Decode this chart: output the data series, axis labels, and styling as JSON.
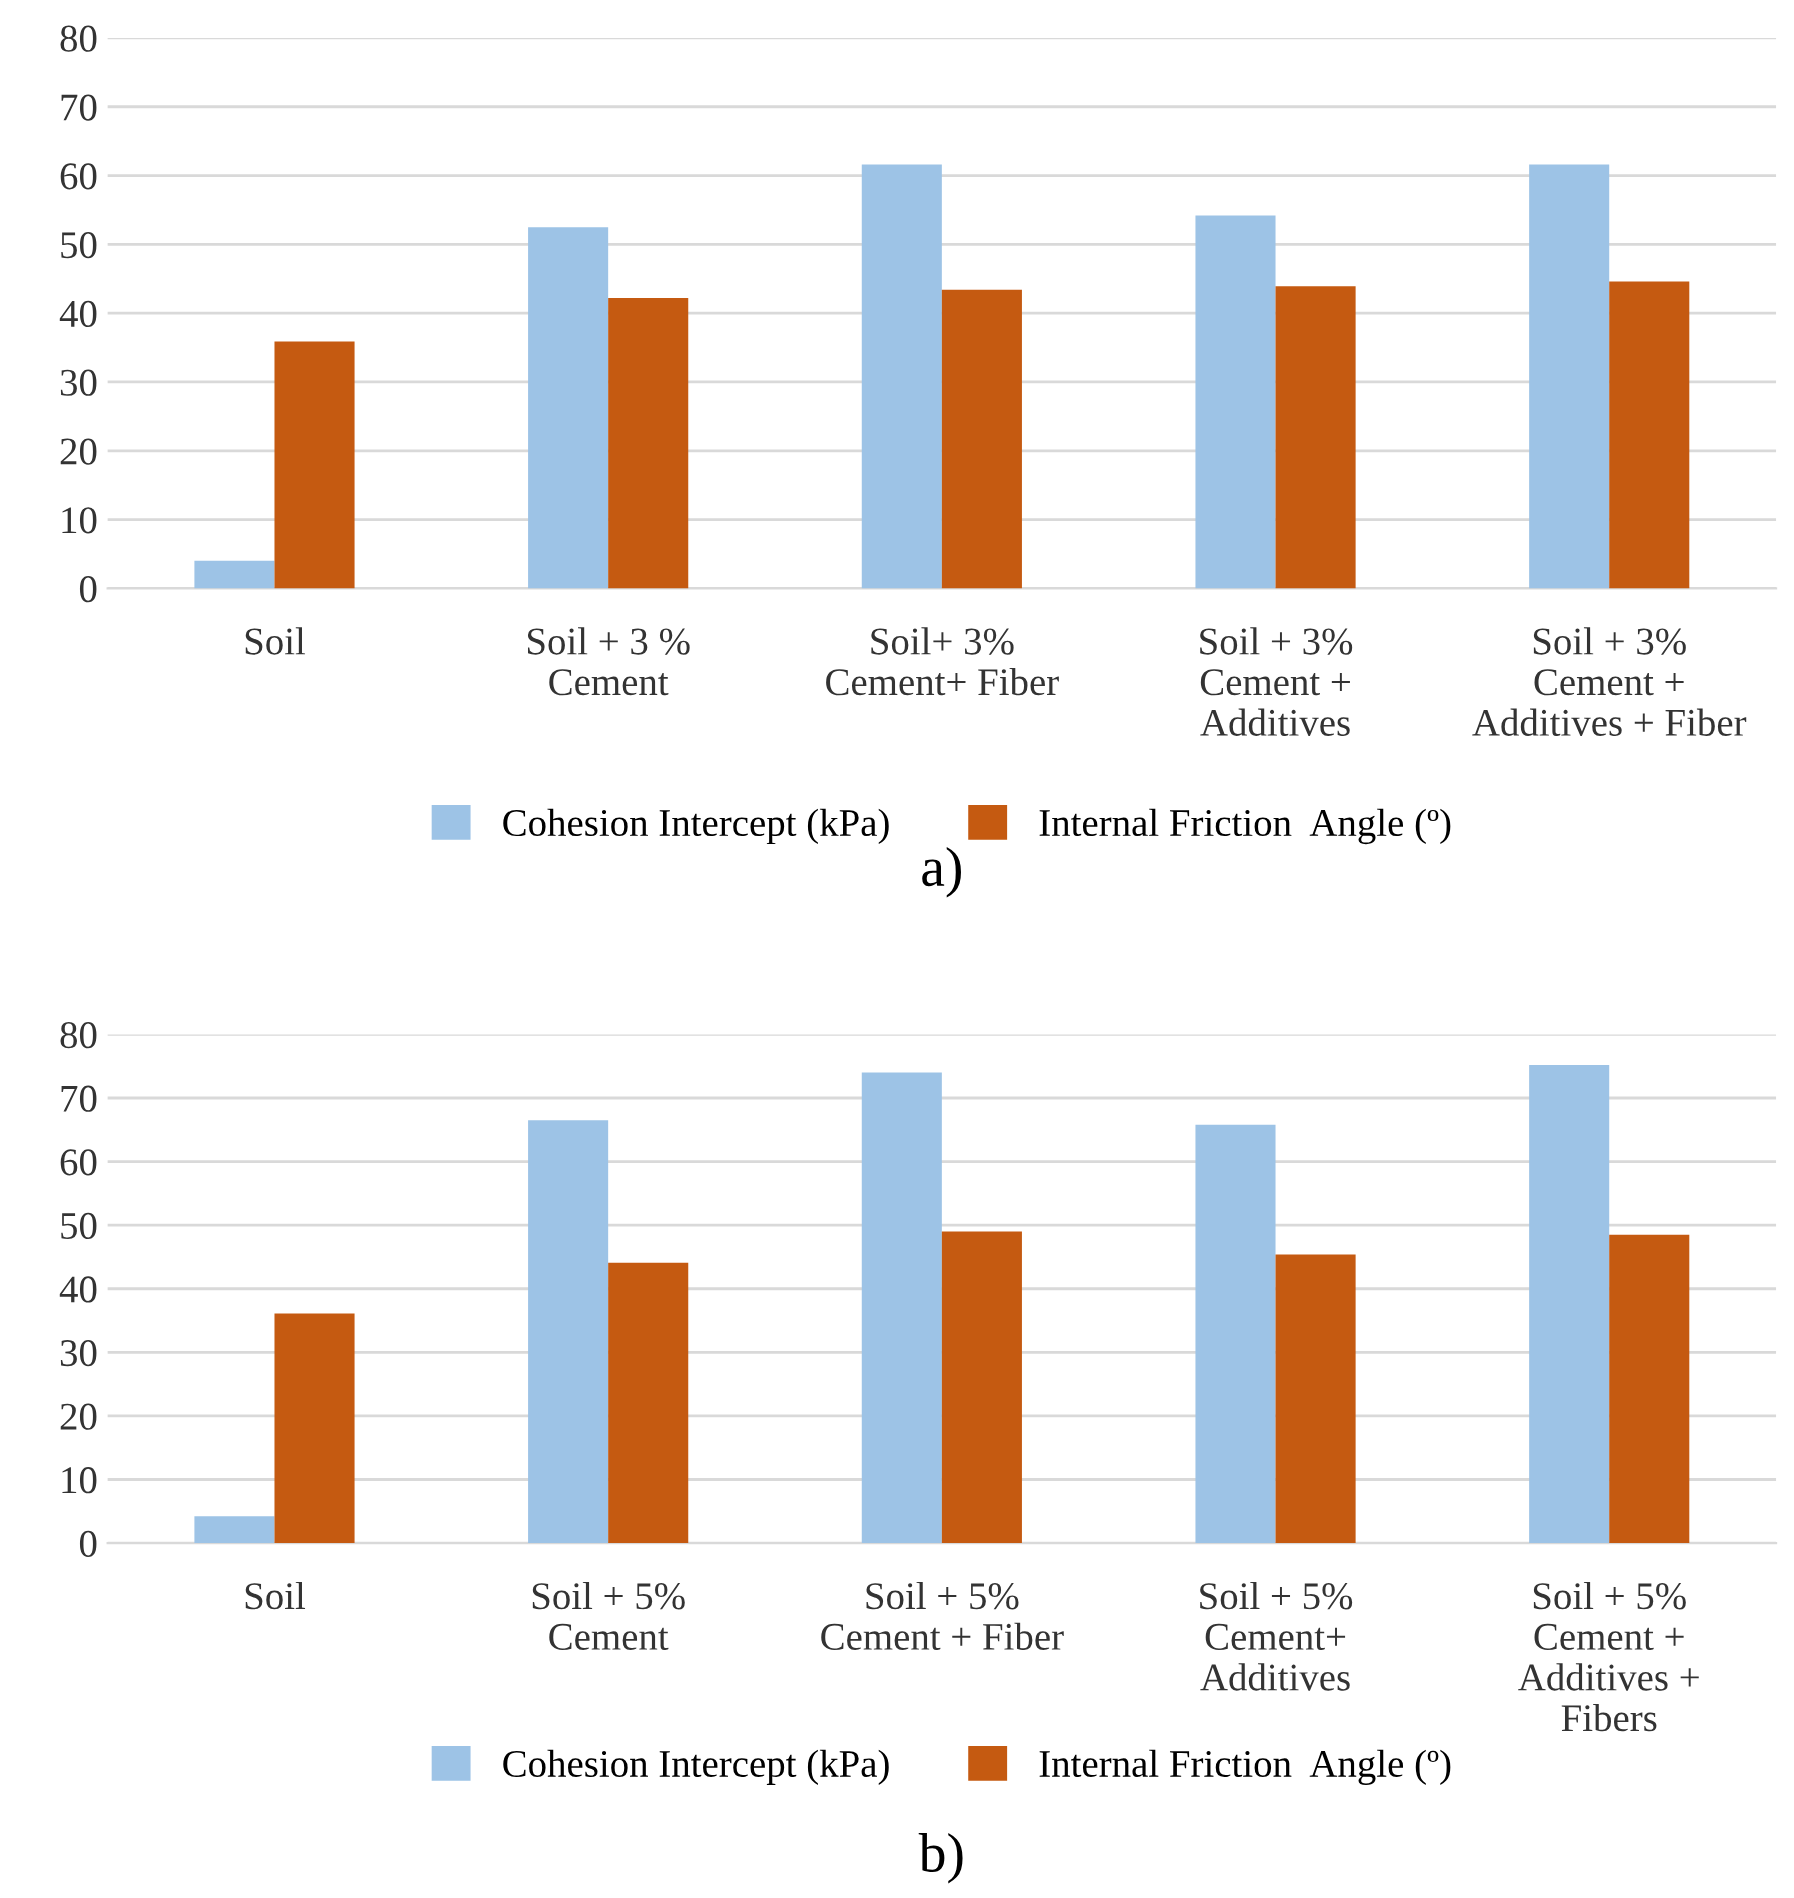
{
  "chart_data": [
    {
      "type": "bar",
      "categories": [
        "Soil",
        "Soil + 3 %\nCement",
        "Soil+ 3%\nCement+ Fiber",
        "Soil + 3%\nCement +\nAdditives",
        "Soil + 3%\nCement +\nAdditives + Fiber"
      ],
      "series": [
        {
          "name": "Cohesion Intercept (kPa)",
          "color": "#9dc3e6",
          "values": [
            4.0,
            52.5,
            61.6,
            54.2,
            61.6
          ]
        },
        {
          "name": "Internal Friction  Angle (º)",
          "color": "#c55a11",
          "values": [
            35.9,
            42.2,
            43.4,
            43.9,
            44.6
          ]
        }
      ],
      "ylim": [
        0,
        80
      ],
      "yticks": [
        0,
        10,
        20,
        30,
        40,
        50,
        60,
        70,
        80
      ],
      "grid": "y",
      "legend": "bottom",
      "annotations": [
        "a)"
      ]
    },
    {
      "type": "bar",
      "categories": [
        "Soil",
        "Soil + 5%\nCement",
        "Soil + 5%\nCement + Fiber",
        "Soil + 5%\nCement+\nAdditives",
        "Soil + 5%\nCement +\nAdditives +\nFibers"
      ],
      "series": [
        {
          "name": "Cohesion Intercept (kPa)",
          "color": "#9dc3e6",
          "values": [
            4.2,
            66.5,
            74.0,
            65.8,
            75.2
          ]
        },
        {
          "name": "Internal Friction  Angle (º)",
          "color": "#c55a11",
          "values": [
            36.1,
            44.1,
            49.0,
            45.4,
            48.5
          ]
        }
      ],
      "ylim": [
        0,
        80
      ],
      "yticks": [
        0,
        10,
        20,
        30,
        40,
        50,
        60,
        70,
        80
      ],
      "grid": "y",
      "legend": "bottom",
      "annotations": [
        "b)"
      ]
    }
  ]
}
